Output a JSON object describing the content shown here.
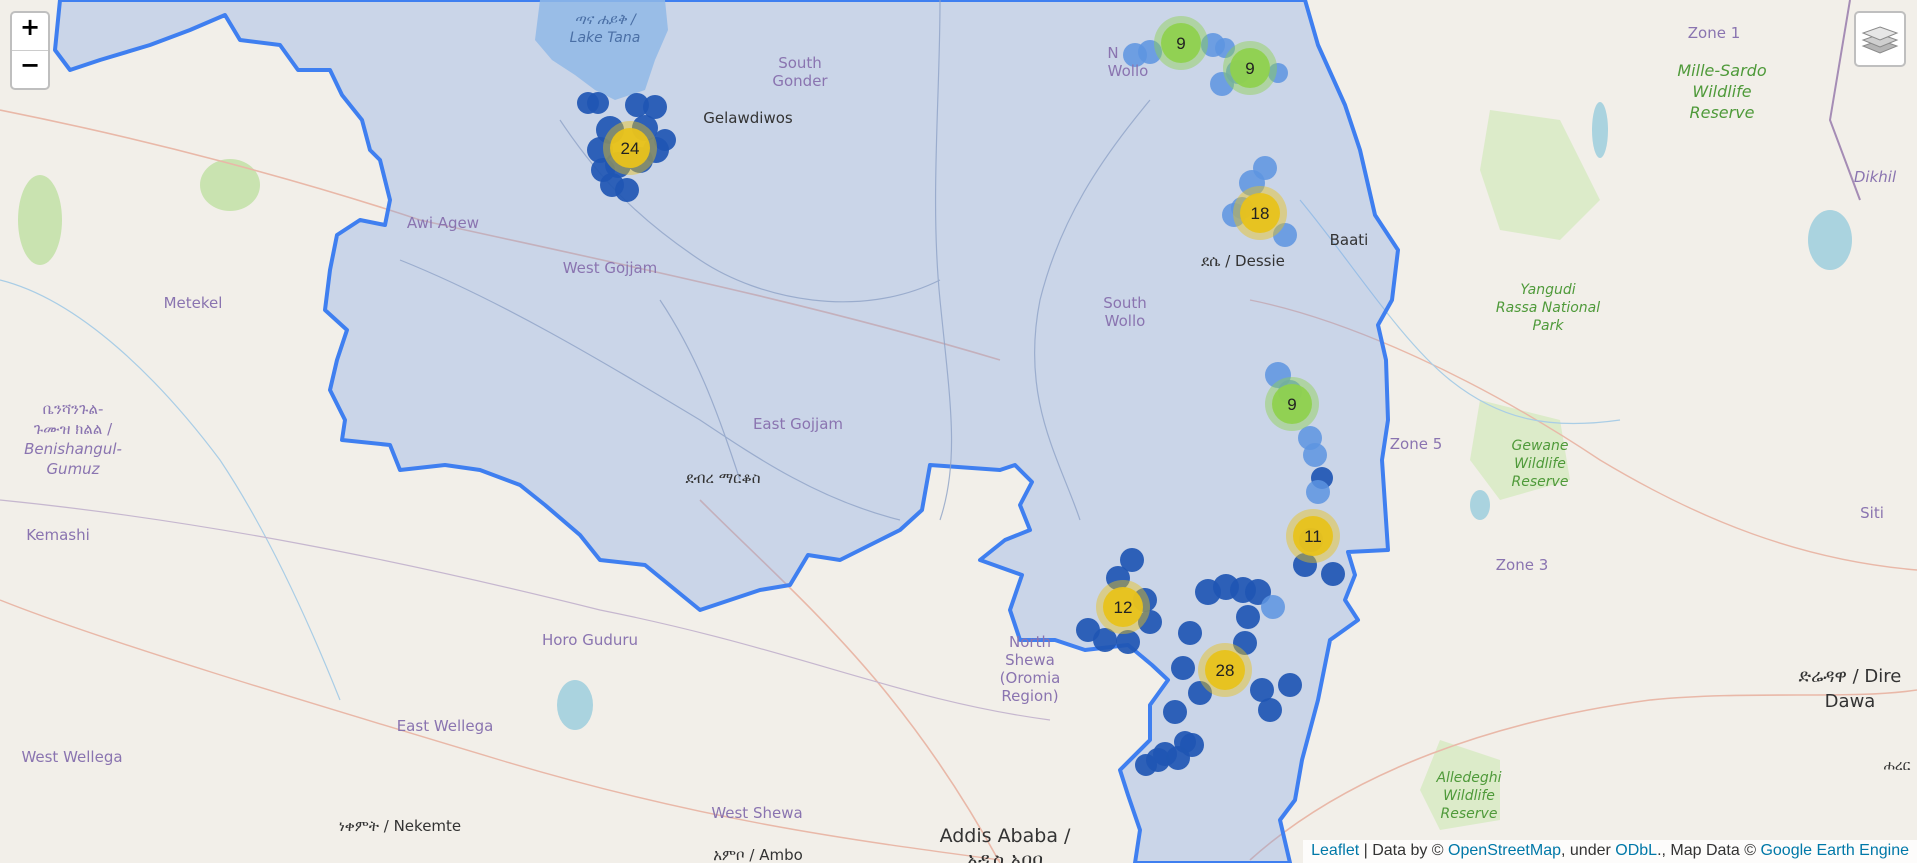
{
  "controls": {
    "zoom_in_label": "+",
    "zoom_out_label": "−",
    "layers_icon": "layers-icon"
  },
  "attribution": {
    "leaflet": "Leaflet",
    "sep1": " | Data by © ",
    "osm": "OpenStreetMap",
    "sep2": ", under ",
    "odbl": "ODbL",
    "sep3": "., Map Data © ",
    "gee": "Google Earth Engine"
  },
  "colors": {
    "region_fill": "#7aa0e8",
    "region_stroke": "#3f7ff0",
    "marker_dark": "#1f56b3",
    "marker_light": "#5d94e0",
    "cluster_yellow": "#e8c21b",
    "cluster_green": "#8fd14f"
  },
  "labels": {
    "lake_tana_am": "ጣና ሐይቅ /",
    "lake_tana_en": "Lake Tana",
    "south_gonder_1": "South",
    "south_gonder_2": "Gonder",
    "gelawdiwos": "Gelawdiwos",
    "north_wollo_1": "N",
    "north_wollo_2": "Wollo",
    "zone1": "Zone 1",
    "mille_sardo_1": "Mille-Sardo",
    "mille_sardo_2": "Wildlife",
    "mille_sardo_3": "Reserve",
    "dikhil": "Dikhil",
    "awi_agew": "Awi Agew",
    "west_gojjam": "West Gojjam",
    "dessie": "ደሴ / Dessie",
    "baati": "Baati",
    "metekel": "Metekel",
    "south_wollo_1": "South",
    "south_wollo_2": "Wollo",
    "yangudi_1": "Yangudi",
    "yangudi_2": "Rassa National",
    "yangudi_3": "Park",
    "benishangul_1": "ቤንሻንጉል-",
    "benishangul_2": "ጉሙዝ ክልል /",
    "benishangul_3": "Benishangul-",
    "benishangul_4": "Gumuz",
    "east_gojjam": "East Gojjam",
    "zone5": "Zone 5",
    "debre_markos": "ደብረ ማርቆስ",
    "gewane_1": "Gewane",
    "gewane_2": "Wildlife",
    "gewane_3": "Reserve",
    "kemashi": "Kemashi",
    "siti": "Siti",
    "zone3": "Zone 3",
    "horo_guduru": "Horo Guduru",
    "north_shewa_1": "North",
    "north_shewa_2": "Shewa",
    "north_shewa_3": "(Oromia",
    "north_shewa_4": "Region)",
    "dire_dawa_1": "ድሬዳዋ / Dire",
    "dire_dawa_2": "Dawa",
    "east_wellega": "East Wellega",
    "west_wellega": "West Wellega",
    "alledeghi_1": "Alledeghi",
    "alledeghi_2": "Wildlife",
    "alledeghi_3": "Reserve",
    "west_shewa": "West Shewa",
    "nekemte": "ነቀምት / Nekemte",
    "addis_1": "Addis Ababa /",
    "addis_2": "አዲስ አበባ",
    "ambo": "አምቦ / Ambo",
    "harar": "ሐረር"
  },
  "clusters": [
    {
      "count": "24",
      "level": "yellow"
    },
    {
      "count": "9",
      "level": "green"
    },
    {
      "count": "9",
      "level": "green"
    },
    {
      "count": "18",
      "level": "yellow"
    },
    {
      "count": "9",
      "level": "green"
    },
    {
      "count": "11",
      "level": "yellow"
    },
    {
      "count": "12",
      "level": "yellow"
    },
    {
      "count": "28",
      "level": "yellow"
    }
  ]
}
